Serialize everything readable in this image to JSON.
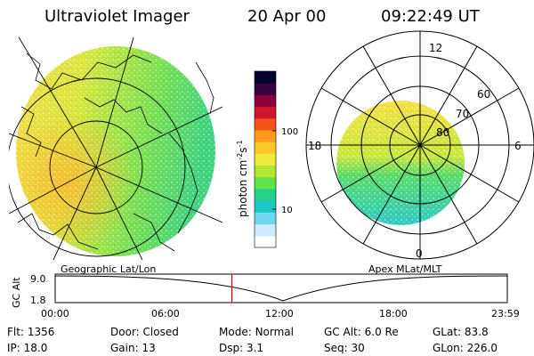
{
  "header": {
    "instrument": "Ultraviolet Imager",
    "date": "20 Apr 00",
    "time": "09:22:49 UT"
  },
  "colorbar": {
    "label": "photon cm",
    "label_sup1": "-2",
    "label_s": "s",
    "label_sup2": "-1",
    "ticks": [
      "100",
      "10"
    ],
    "scale": "log",
    "colors_bottom_to_top": [
      "#ffffff",
      "#cfe9ff",
      "#6fd6f0",
      "#1ec7c7",
      "#27d08a",
      "#62e24a",
      "#b2e633",
      "#eeea3a",
      "#ffc72b",
      "#ff9b1c",
      "#f2541b",
      "#d0162b",
      "#8a0037",
      "#3a0042",
      "#000030"
    ]
  },
  "geo_panel": {
    "caption": "Geographic Lat/Lon"
  },
  "polar_panel": {
    "caption": "Apex MLat/MLT",
    "mlt_labels": {
      "top": "12",
      "bottom": "0",
      "left": "18",
      "right": "6"
    },
    "lat_labels": [
      "60",
      "70",
      "80"
    ]
  },
  "timeline": {
    "ylabel": "GC Alt",
    "yticks": [
      "9.0",
      "1.8"
    ],
    "xticks": [
      "00:00",
      "06:00",
      "12:00",
      "18:00",
      "23:59"
    ],
    "marker_time_hours": 9.38
  },
  "info": {
    "row1": [
      {
        "label": "Flt:",
        "value": "1356"
      },
      {
        "label": "Door:",
        "value": "Closed"
      },
      {
        "label": "Mode:",
        "value": "Normal"
      },
      {
        "label": "GC Alt:",
        "value": "6.0 Re"
      },
      {
        "label": "GLat:",
        "value": "83.8"
      }
    ],
    "row2": [
      {
        "label": "IP:",
        "value": "18.0"
      },
      {
        "label": "Gain:",
        "value": "13"
      },
      {
        "label": "Dsp:",
        "value": "3.1"
      },
      {
        "label": "Seq:",
        "value": "30"
      },
      {
        "label": "GLon:",
        "value": "226.0"
      }
    ]
  }
}
